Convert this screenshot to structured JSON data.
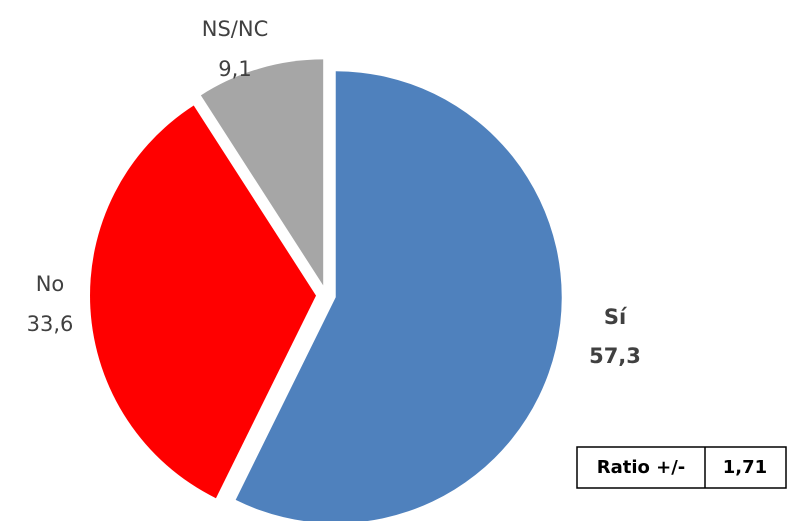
{
  "chart_data": {
    "type": "pie",
    "categories": [
      "Sí",
      "No",
      "NS/NC"
    ],
    "values": [
      57.3,
      33.6,
      9.1
    ],
    "value_labels": [
      "57,3",
      "33,6",
      "9,1"
    ],
    "colors": [
      "#4f81bd",
      "#ff0000",
      "#a6a6a6"
    ],
    "ratio_table": [
      "Ratio +/-",
      "1,71"
    ]
  }
}
